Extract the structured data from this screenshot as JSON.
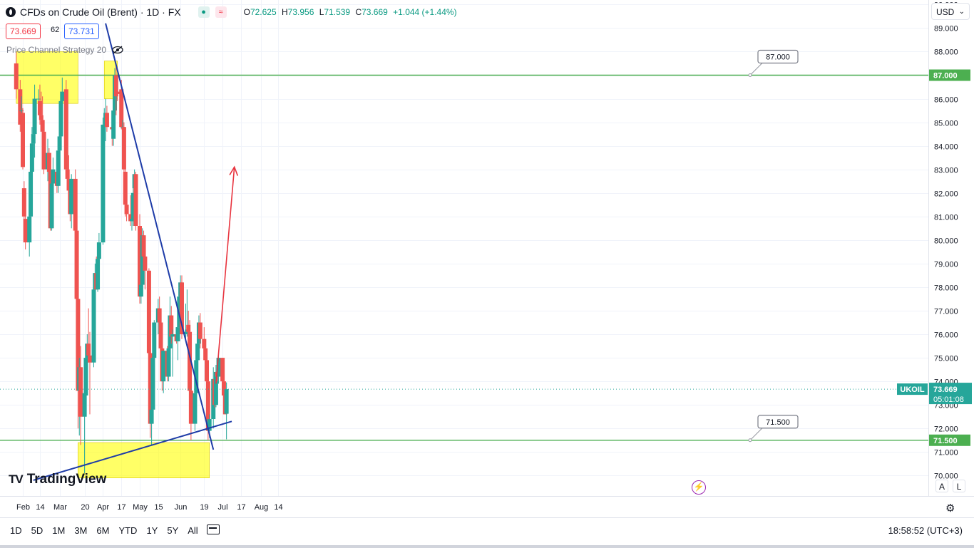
{
  "header": {
    "title": "CFDs on Crude Oil (Brent) · 1D · FX",
    "ohlc": {
      "o_label": "O",
      "o": "72.625",
      "h_label": "H",
      "h": "73.956",
      "l_label": "L",
      "l": "71.539",
      "c_label": "C",
      "c": "73.669",
      "change": "+1.044 (+1.44%)"
    },
    "sell_price": "73.669",
    "spread": "62",
    "buy_price": "73.731"
  },
  "indicator": {
    "label": "Price Channel Strategy 20"
  },
  "currency": "USD",
  "logo_text": "TradingView",
  "price_axis_buttons": {
    "auto": "A",
    "log": "L"
  },
  "bottom_bar": {
    "ranges": [
      "1D",
      "5D",
      "1M",
      "3M",
      "6M",
      "YTD",
      "1Y",
      "5Y",
      "All"
    ],
    "clock": "18:58:52 (UTC+3)"
  },
  "colors": {
    "up": "#26a69a",
    "down": "#ef5350",
    "level": "#4caf50",
    "trend": "#1e3ca8",
    "target": "#e8343f",
    "zone": "#ffff00",
    "symbol_tag": "#26a69a"
  },
  "chart_data": {
    "type": "candlestick",
    "symbol": "UKOIL",
    "current_price": 73.669,
    "countdown": "05:01:08",
    "ylim": [
      69.7,
      90.4
    ],
    "y_ticks": [
      "70.000",
      "71.000",
      "72.000",
      "73.000",
      "74.000",
      "75.000",
      "76.000",
      "77.000",
      "78.000",
      "79.000",
      "80.000",
      "81.000",
      "82.000",
      "83.000",
      "84.000",
      "85.000",
      "86.000",
      "87.000",
      "88.000",
      "89.000",
      "90.000"
    ],
    "x_ticks": [
      {
        "label": "Feb",
        "date": "2023-02-01"
      },
      {
        "label": "14",
        "date": "2023-02-14"
      },
      {
        "label": "Mar",
        "date": "2023-03-01"
      },
      {
        "label": "20",
        "date": "2023-03-20"
      },
      {
        "label": "Apr",
        "date": "2023-04-03"
      },
      {
        "label": "17",
        "date": "2023-04-17"
      },
      {
        "label": "May",
        "date": "2023-05-01"
      },
      {
        "label": "15",
        "date": "2023-05-15"
      },
      {
        "label": "Jun",
        "date": "2023-06-01"
      },
      {
        "label": "19",
        "date": "2023-06-19"
      },
      {
        "label": "Jul",
        "date": "2023-07-03"
      },
      {
        "label": "17",
        "date": "2023-07-17"
      },
      {
        "label": "Aug",
        "date": "2023-08-01"
      },
      {
        "label": "14",
        "date": "2023-08-14"
      }
    ],
    "horizontal_levels": [
      {
        "price": 87.0,
        "label": "87.000"
      },
      {
        "price": 71.5,
        "label": "71.500"
      }
    ],
    "zones": [
      {
        "from": "2023-01-27",
        "to": "2023-03-15",
        "low": 85.8,
        "high": 88.0
      },
      {
        "from": "2023-04-04",
        "to": "2023-04-14",
        "low": 86.0,
        "high": 87.6
      },
      {
        "from": "2023-03-15",
        "to": "2023-06-23",
        "low": 69.9,
        "high": 71.4
      }
    ],
    "trendlines": [
      {
        "name": "resistance",
        "from": {
          "date": "2023-04-05",
          "price": 89.2
        },
        "to": {
          "date": "2023-06-26",
          "price": 71.1
        }
      },
      {
        "name": "support",
        "from": {
          "date": "2023-02-09",
          "price": 69.8
        },
        "to": {
          "date": "2023-07-10",
          "price": 72.3
        }
      }
    ],
    "target_arrow": {
      "from": {
        "date": "2023-06-28",
        "price": 73.9
      },
      "to": {
        "date": "2023-07-12",
        "price": 83.1
      }
    },
    "candles": [
      {
        "date": "2023-01-27",
        "o": 87.5,
        "h": 88.0,
        "l": 86.0,
        "c": 86.4
      },
      {
        "date": "2023-01-30",
        "o": 86.4,
        "h": 86.8,
        "l": 84.6,
        "c": 84.9
      },
      {
        "date": "2023-01-31",
        "o": 85.5,
        "h": 86.1,
        "l": 84.8,
        "c": 85.5
      },
      {
        "date": "2023-02-01",
        "o": 85.4,
        "h": 85.6,
        "l": 83.0,
        "c": 83.1
      },
      {
        "date": "2023-02-02",
        "o": 82.2,
        "h": 82.5,
        "l": 80.4,
        "c": 81.0
      },
      {
        "date": "2023-02-03",
        "o": 80.9,
        "h": 81.3,
        "l": 79.6,
        "c": 79.9
      },
      {
        "date": "2023-02-06",
        "o": 79.9,
        "h": 81.2,
        "l": 79.3,
        "c": 81.0
      },
      {
        "date": "2023-02-07",
        "o": 81.0,
        "h": 83.1,
        "l": 80.6,
        "c": 82.9
      },
      {
        "date": "2023-02-08",
        "o": 82.9,
        "h": 84.8,
        "l": 82.4,
        "c": 84.1
      },
      {
        "date": "2023-02-09",
        "o": 84.1,
        "h": 85.2,
        "l": 83.2,
        "c": 84.5
      },
      {
        "date": "2023-02-10",
        "o": 84.5,
        "h": 86.6,
        "l": 83.5,
        "c": 86.0
      },
      {
        "date": "2023-02-13",
        "o": 86.0,
        "h": 86.4,
        "l": 85.3,
        "c": 86.0
      },
      {
        "date": "2023-02-14",
        "o": 85.9,
        "h": 86.6,
        "l": 84.9,
        "c": 85.3
      },
      {
        "date": "2023-02-15",
        "o": 85.3,
        "h": 86.3,
        "l": 84.7,
        "c": 85.1
      },
      {
        "date": "2023-02-16",
        "o": 85.1,
        "h": 86.1,
        "l": 84.3,
        "c": 84.6
      },
      {
        "date": "2023-02-17",
        "o": 84.6,
        "h": 85.0,
        "l": 82.8,
        "c": 83.0
      },
      {
        "date": "2023-02-20",
        "o": 83.0,
        "h": 84.3,
        "l": 82.5,
        "c": 83.7
      },
      {
        "date": "2023-02-21",
        "o": 83.7,
        "h": 83.9,
        "l": 82.6,
        "c": 82.9
      },
      {
        "date": "2023-02-22",
        "o": 82.9,
        "h": 83.1,
        "l": 80.4,
        "c": 80.5
      },
      {
        "date": "2023-02-23",
        "o": 80.5,
        "h": 82.8,
        "l": 80.4,
        "c": 82.4
      },
      {
        "date": "2023-02-24",
        "o": 82.4,
        "h": 83.5,
        "l": 81.3,
        "c": 83.0
      },
      {
        "date": "2023-02-27",
        "o": 82.9,
        "h": 83.2,
        "l": 82.0,
        "c": 82.3
      },
      {
        "date": "2023-02-28",
        "o": 82.3,
        "h": 84.0,
        "l": 82.0,
        "c": 83.8
      },
      {
        "date": "2023-03-01",
        "o": 83.8,
        "h": 84.6,
        "l": 83.0,
        "c": 84.4
      },
      {
        "date": "2023-03-02",
        "o": 84.4,
        "h": 86.3,
        "l": 84.2,
        "c": 85.9
      },
      {
        "date": "2023-03-03",
        "o": 85.9,
        "h": 86.9,
        "l": 85.8,
        "c": 86.3
      },
      {
        "date": "2023-03-06",
        "o": 86.4,
        "h": 86.8,
        "l": 82.7,
        "c": 83.0
      },
      {
        "date": "2023-03-07",
        "o": 83.0,
        "h": 83.6,
        "l": 82.4,
        "c": 82.6
      },
      {
        "date": "2023-03-08",
        "o": 82.6,
        "h": 83.6,
        "l": 81.6,
        "c": 82.1
      },
      {
        "date": "2023-03-09",
        "o": 82.1,
        "h": 82.3,
        "l": 80.8,
        "c": 81.1
      },
      {
        "date": "2023-03-10",
        "o": 81.1,
        "h": 82.8,
        "l": 80.5,
        "c": 82.6
      },
      {
        "date": "2023-03-13",
        "o": 82.6,
        "h": 83.0,
        "l": 79.5,
        "c": 80.4
      },
      {
        "date": "2023-03-14",
        "o": 80.4,
        "h": 80.6,
        "l": 77.4,
        "c": 77.5
      },
      {
        "date": "2023-03-15",
        "o": 77.5,
        "h": 77.7,
        "l": 72.0,
        "c": 73.6
      },
      {
        "date": "2023-03-16",
        "o": 73.6,
        "h": 75.0,
        "l": 71.7,
        "c": 74.6
      },
      {
        "date": "2023-03-17",
        "o": 74.6,
        "h": 75.5,
        "l": 71.3,
        "c": 72.5
      },
      {
        "date": "2023-03-20",
        "o": 72.5,
        "h": 74.0,
        "l": 70.1,
        "c": 73.5
      },
      {
        "date": "2023-03-21",
        "o": 73.4,
        "h": 75.2,
        "l": 73.0,
        "c": 75.0
      },
      {
        "date": "2023-03-22",
        "o": 75.0,
        "h": 76.0,
        "l": 74.6,
        "c": 75.6
      },
      {
        "date": "2023-03-23",
        "o": 75.6,
        "h": 77.1,
        "l": 74.8,
        "c": 75.1
      },
      {
        "date": "2023-03-24",
        "o": 75.1,
        "h": 76.1,
        "l": 72.6,
        "c": 74.8
      },
      {
        "date": "2023-03-27",
        "o": 74.8,
        "h": 78.2,
        "l": 74.6,
        "c": 77.9
      },
      {
        "date": "2023-03-28",
        "o": 77.9,
        "h": 79.0,
        "l": 77.3,
        "c": 78.6
      },
      {
        "date": "2023-03-29",
        "o": 78.6,
        "h": 79.3,
        "l": 77.9,
        "c": 77.9
      },
      {
        "date": "2023-03-30",
        "o": 77.9,
        "h": 79.9,
        "l": 77.8,
        "c": 79.2
      },
      {
        "date": "2023-03-31",
        "o": 79.2,
        "h": 80.3,
        "l": 78.1,
        "c": 79.9
      },
      {
        "date": "2023-04-03",
        "o": 79.9,
        "h": 85.2,
        "l": 79.8,
        "c": 84.9
      },
      {
        "date": "2023-04-04",
        "o": 84.9,
        "h": 85.6,
        "l": 84.4,
        "c": 84.9
      },
      {
        "date": "2023-04-05",
        "o": 84.9,
        "h": 86.0,
        "l": 84.2,
        "c": 85.4
      },
      {
        "date": "2023-04-06",
        "o": 85.4,
        "h": 85.7,
        "l": 84.6,
        "c": 84.8
      },
      {
        "date": "2023-04-10",
        "o": 84.8,
        "h": 85.1,
        "l": 84.0,
        "c": 84.7
      },
      {
        "date": "2023-04-11",
        "o": 84.3,
        "h": 85.8,
        "l": 84.0,
        "c": 85.5
      },
      {
        "date": "2023-04-12",
        "o": 85.5,
        "h": 87.3,
        "l": 84.9,
        "c": 87.0
      },
      {
        "date": "2023-04-13",
        "o": 87.0,
        "h": 87.5,
        "l": 85.3,
        "c": 86.1
      },
      {
        "date": "2023-04-14",
        "o": 86.3,
        "h": 87.0,
        "l": 85.9,
        "c": 86.2
      },
      {
        "date": "2023-04-17",
        "o": 86.4,
        "h": 86.8,
        "l": 84.7,
        "c": 84.8
      },
      {
        "date": "2023-04-18",
        "o": 84.8,
        "h": 85.1,
        "l": 84.0,
        "c": 84.8
      },
      {
        "date": "2023-04-19",
        "o": 84.8,
        "h": 85.0,
        "l": 82.8,
        "c": 83.0
      },
      {
        "date": "2023-04-20",
        "o": 82.9,
        "h": 83.2,
        "l": 81.0,
        "c": 81.5
      },
      {
        "date": "2023-04-21",
        "o": 81.5,
        "h": 82.9,
        "l": 80.8,
        "c": 81.1
      },
      {
        "date": "2023-04-24",
        "o": 81.1,
        "h": 81.9,
        "l": 80.6,
        "c": 80.8
      },
      {
        "date": "2023-04-25",
        "o": 80.8,
        "h": 81.0,
        "l": 80.4,
        "c": 80.9
      },
      {
        "date": "2023-04-26",
        "o": 80.8,
        "h": 82.7,
        "l": 80.6,
        "c": 82.0
      },
      {
        "date": "2023-04-27",
        "o": 82.2,
        "h": 83.0,
        "l": 81.6,
        "c": 82.8
      },
      {
        "date": "2023-04-28",
        "o": 82.8,
        "h": 82.9,
        "l": 80.4,
        "c": 80.6
      },
      {
        "date": "2023-05-01",
        "o": 80.6,
        "h": 81.1,
        "l": 77.3,
        "c": 77.6
      },
      {
        "date": "2023-05-02",
        "o": 77.6,
        "h": 78.9,
        "l": 77.3,
        "c": 78.1
      },
      {
        "date": "2023-05-03",
        "o": 78.1,
        "h": 80.5,
        "l": 77.8,
        "c": 80.2
      },
      {
        "date": "2023-05-04",
        "o": 80.2,
        "h": 80.4,
        "l": 79.0,
        "c": 79.3
      },
      {
        "date": "2023-05-05",
        "o": 79.3,
        "h": 79.7,
        "l": 77.9,
        "c": 78.7
      },
      {
        "date": "2023-05-08",
        "o": 78.7,
        "h": 78.8,
        "l": 75.0,
        "c": 75.2
      },
      {
        "date": "2023-05-09",
        "o": 75.2,
        "h": 75.4,
        "l": 71.6,
        "c": 72.2
      },
      {
        "date": "2023-05-10",
        "o": 72.2,
        "h": 73.0,
        "l": 71.3,
        "c": 72.8
      },
      {
        "date": "2023-05-11",
        "o": 72.8,
        "h": 75.5,
        "l": 72.6,
        "c": 75.0
      },
      {
        "date": "2023-05-12",
        "o": 75.0,
        "h": 76.6,
        "l": 74.2,
        "c": 76.5
      },
      {
        "date": "2023-05-15",
        "o": 76.5,
        "h": 77.5,
        "l": 76.0,
        "c": 77.1
      },
      {
        "date": "2023-05-16",
        "o": 77.1,
        "h": 77.6,
        "l": 76.4,
        "c": 76.5
      },
      {
        "date": "2023-05-17",
        "o": 76.5,
        "h": 76.8,
        "l": 75.2,
        "c": 75.4
      },
      {
        "date": "2023-05-18",
        "o": 75.4,
        "h": 75.7,
        "l": 73.6,
        "c": 74.0
      },
      {
        "date": "2023-05-19",
        "o": 74.0,
        "h": 75.2,
        "l": 73.5,
        "c": 75.3
      },
      {
        "date": "2023-05-22",
        "o": 75.3,
        "h": 75.5,
        "l": 74.0,
        "c": 74.2
      },
      {
        "date": "2023-05-23",
        "o": 74.2,
        "h": 75.8,
        "l": 74.0,
        "c": 75.4
      },
      {
        "date": "2023-05-24",
        "o": 75.4,
        "h": 77.6,
        "l": 75.2,
        "c": 76.8
      },
      {
        "date": "2023-05-25",
        "o": 76.8,
        "h": 77.2,
        "l": 75.6,
        "c": 75.9
      },
      {
        "date": "2023-05-26",
        "o": 75.9,
        "h": 76.2,
        "l": 74.2,
        "c": 76.0
      },
      {
        "date": "2023-05-29",
        "o": 76.0,
        "h": 76.3,
        "l": 75.6,
        "c": 75.7
      },
      {
        "date": "2023-05-30",
        "o": 75.7,
        "h": 76.9,
        "l": 74.9,
        "c": 76.3
      },
      {
        "date": "2023-05-31",
        "o": 76.3,
        "h": 77.9,
        "l": 76.0,
        "c": 77.6
      },
      {
        "date": "2023-06-01",
        "o": 77.6,
        "h": 78.5,
        "l": 77.2,
        "c": 78.2
      },
      {
        "date": "2023-06-02",
        "o": 78.2,
        "h": 78.5,
        "l": 75.8,
        "c": 76.0
      },
      {
        "date": "2023-06-05",
        "o": 76.0,
        "h": 77.3,
        "l": 75.7,
        "c": 76.1
      },
      {
        "date": "2023-06-06",
        "o": 76.1,
        "h": 77.9,
        "l": 75.9,
        "c": 76.2
      },
      {
        "date": "2023-06-07",
        "o": 76.4,
        "h": 77.0,
        "l": 75.6,
        "c": 76.1
      },
      {
        "date": "2023-06-08",
        "o": 76.1,
        "h": 76.6,
        "l": 73.3,
        "c": 73.6
      },
      {
        "date": "2023-06-09",
        "o": 73.6,
        "h": 73.9,
        "l": 71.5,
        "c": 72.2
      },
      {
        "date": "2023-06-12",
        "o": 72.2,
        "h": 73.4,
        "l": 71.9,
        "c": 73.5
      },
      {
        "date": "2023-06-13",
        "o": 73.5,
        "h": 75.0,
        "l": 73.0,
        "c": 74.9
      },
      {
        "date": "2023-06-14",
        "o": 74.9,
        "h": 76.2,
        "l": 74.5,
        "c": 75.6
      },
      {
        "date": "2023-06-15",
        "o": 75.6,
        "h": 76.8,
        "l": 75.2,
        "c": 76.5
      },
      {
        "date": "2023-06-16",
        "o": 76.5,
        "h": 76.9,
        "l": 75.4,
        "c": 75.8
      },
      {
        "date": "2023-06-19",
        "o": 75.8,
        "h": 76.3,
        "l": 75.0,
        "c": 75.4
      },
      {
        "date": "2023-06-20",
        "o": 75.4,
        "h": 75.6,
        "l": 74.2,
        "c": 74.9
      },
      {
        "date": "2023-06-21",
        "o": 74.9,
        "h": 75.4,
        "l": 73.3,
        "c": 74.0
      },
      {
        "date": "2023-06-22",
        "o": 74.0,
        "h": 74.6,
        "l": 71.5,
        "c": 71.9
      },
      {
        "date": "2023-06-23",
        "o": 71.9,
        "h": 72.6,
        "l": 71.6,
        "c": 72.4
      },
      {
        "date": "2023-06-26",
        "o": 72.4,
        "h": 74.6,
        "l": 72.0,
        "c": 74.1
      },
      {
        "date": "2023-06-27",
        "o": 74.1,
        "h": 74.2,
        "l": 72.9,
        "c": 73.0
      },
      {
        "date": "2023-06-28",
        "o": 73.0,
        "h": 74.7,
        "l": 72.9,
        "c": 74.4
      },
      {
        "date": "2023-06-29",
        "o": 74.4,
        "h": 74.7,
        "l": 74.0,
        "c": 74.2
      },
      {
        "date": "2023-06-30",
        "o": 74.2,
        "h": 75.3,
        "l": 73.9,
        "c": 75.0
      },
      {
        "date": "2023-07-03",
        "o": 75.0,
        "h": 75.0,
        "l": 73.7,
        "c": 74.0
      },
      {
        "date": "2023-07-04",
        "o": 74.0,
        "h": 74.3,
        "l": 73.2,
        "c": 73.4
      },
      {
        "date": "2023-07-05",
        "o": 73.4,
        "h": 74.0,
        "l": 72.6,
        "c": 72.6
      },
      {
        "date": "2023-07-06",
        "o": 72.625,
        "h": 73.956,
        "l": 71.539,
        "c": 73.669
      }
    ]
  }
}
